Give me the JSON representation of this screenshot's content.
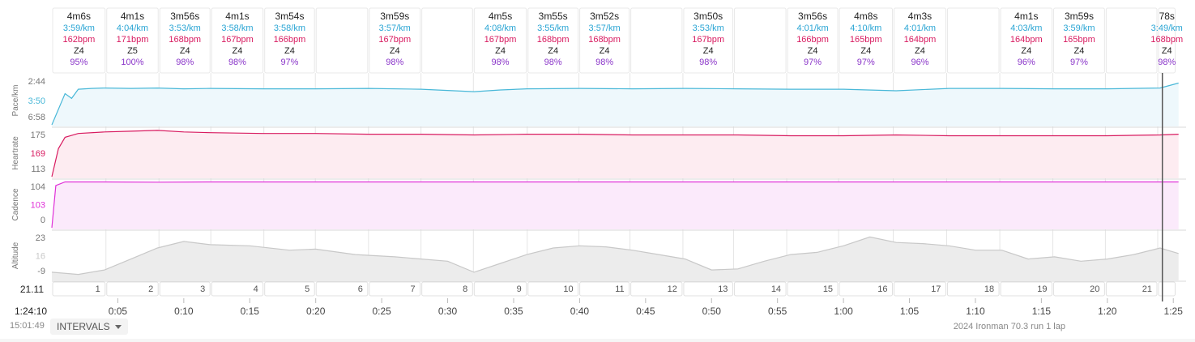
{
  "intervals": [
    {
      "num": "1",
      "time": "4m6s",
      "pace": "3:59/km",
      "hr": "162bpm",
      "zone": "Z4",
      "pct": "95%"
    },
    {
      "num": "2",
      "time": "4m1s",
      "pace": "4:04/km",
      "hr": "171bpm",
      "zone": "Z5",
      "pct": "100%"
    },
    {
      "num": "3",
      "time": "3m56s",
      "pace": "3:53/km",
      "hr": "168bpm",
      "zone": "Z4",
      "pct": "98%"
    },
    {
      "num": "4",
      "time": "4m1s",
      "pace": "3:58/km",
      "hr": "167bpm",
      "zone": "Z4",
      "pct": "98%"
    },
    {
      "num": "5",
      "time": "3m54s",
      "pace": "3:58/km",
      "hr": "166bpm",
      "zone": "Z4",
      "pct": "97%"
    },
    {
      "num": "6",
      "time": "",
      "pace": "",
      "hr": "",
      "zone": "",
      "pct": ""
    },
    {
      "num": "7",
      "time": "3m59s",
      "pace": "3:57/km",
      "hr": "167bpm",
      "zone": "Z4",
      "pct": "98%"
    },
    {
      "num": "8",
      "time": "",
      "pace": "",
      "hr": "",
      "zone": "",
      "pct": ""
    },
    {
      "num": "9",
      "time": "4m5s",
      "pace": "4:08/km",
      "hr": "167bpm",
      "zone": "Z4",
      "pct": "98%"
    },
    {
      "num": "10",
      "time": "3m55s",
      "pace": "3:55/km",
      "hr": "168bpm",
      "zone": "Z4",
      "pct": "98%"
    },
    {
      "num": "11",
      "time": "3m52s",
      "pace": "3:57/km",
      "hr": "168bpm",
      "zone": "Z4",
      "pct": "98%"
    },
    {
      "num": "12",
      "time": "",
      "pace": "",
      "hr": "",
      "zone": "",
      "pct": ""
    },
    {
      "num": "13",
      "time": "3m50s",
      "pace": "3:53/km",
      "hr": "167bpm",
      "zone": "Z4",
      "pct": "98%"
    },
    {
      "num": "14",
      "time": "",
      "pace": "",
      "hr": "",
      "zone": "",
      "pct": ""
    },
    {
      "num": "15",
      "time": "3m56s",
      "pace": "4:01/km",
      "hr": "166bpm",
      "zone": "Z4",
      "pct": "97%"
    },
    {
      "num": "16",
      "time": "4m8s",
      "pace": "4:10/km",
      "hr": "165bpm",
      "zone": "Z4",
      "pct": "97%"
    },
    {
      "num": "17",
      "time": "4m3s",
      "pace": "4:01/km",
      "hr": "164bpm",
      "zone": "Z4",
      "pct": "96%"
    },
    {
      "num": "18",
      "time": "",
      "pace": "",
      "hr": "",
      "zone": "",
      "pct": ""
    },
    {
      "num": "19",
      "time": "4m1s",
      "pace": "4:03/km",
      "hr": "164bpm",
      "zone": "Z4",
      "pct": "96%"
    },
    {
      "num": "20",
      "time": "3m59s",
      "pace": "3:59/km",
      "hr": "165bpm",
      "zone": "Z4",
      "pct": "97%"
    },
    {
      "num": "21",
      "time": "",
      "pace": "",
      "hr": "",
      "zone": "",
      "pct": ""
    },
    {
      "num": "",
      "time": "78s",
      "pace": "3:49/km",
      "hr": "168bpm",
      "zone": "Z4",
      "pct": "98%"
    }
  ],
  "interval_minutes_start": [
    0,
    4.1,
    8.12,
    12.05,
    16.07,
    19.97,
    24.0,
    27.98,
    31.95,
    36.03,
    39.95,
    43.82,
    47.83,
    51.67,
    55.7,
    59.63,
    63.77,
    67.82,
    71.85,
    75.87,
    79.85,
    83.82
  ],
  "interval_end_minutes": 85.2,
  "panels": [
    {
      "name": "Pace/km",
      "ticks": [
        "2:44",
        "3:50",
        "6:58"
      ],
      "highlight": "3:50",
      "color": "#49b8d8",
      "fill": "#eef8fc"
    },
    {
      "name": "Heartrate",
      "ticks": [
        "175",
        "169",
        "113"
      ],
      "highlight": "169",
      "color": "#d81b60",
      "fill": "#fdecf1"
    },
    {
      "name": "Cadence",
      "ticks": [
        "104",
        "103",
        "0"
      ],
      "highlight": "103",
      "color": "#e030d8",
      "fill": "#fbeafb"
    },
    {
      "name": "Altitude",
      "ticks": [
        "23",
        "16",
        "-9"
      ],
      "highlight": "16",
      "color": "#c8c8c8",
      "fill": "#ececec"
    }
  ],
  "distance_label": "21.11",
  "time_axis": [
    "0:05",
    "0:10",
    "0:15",
    "0:20",
    "0:25",
    "0:30",
    "0:35",
    "0:40",
    "0:45",
    "0:50",
    "0:55",
    "1:00",
    "1:05",
    "1:10",
    "1:15",
    "1:20",
    "1:25"
  ],
  "time_axis_minutes": [
    5,
    10,
    15,
    20,
    25,
    30,
    35,
    40,
    45,
    50,
    55,
    60,
    65,
    70,
    75,
    80,
    85
  ],
  "cursor_time": "1:24:10",
  "cursor_clock": "15:01:49",
  "cursor_minute": 84.17,
  "intervals_button": "INTERVALS",
  "activity_title": "2024 Ironman 70.3 run 1 lap",
  "chart_data": {
    "type": "line",
    "x_unit": "minutes",
    "xlim": [
      0,
      85.6
    ],
    "series": [
      {
        "name": "Pace/km",
        "y_ticks": [
          "2:44",
          "3:50",
          "6:58"
        ],
        "x": [
          0,
          1,
          1.5,
          2,
          3,
          4,
          6,
          8,
          10,
          12,
          16,
          20,
          24,
          28,
          32,
          34,
          36,
          40,
          44,
          48,
          52,
          56,
          60,
          64,
          68,
          72,
          76,
          80,
          84,
          85.4
        ],
        "y_sec": [
          418,
          255,
          280,
          232,
          228,
          226,
          228,
          226,
          230,
          228,
          230,
          230,
          228,
          232,
          245,
          236,
          230,
          228,
          230,
          228,
          230,
          232,
          232,
          240,
          228,
          228,
          230,
          230,
          226,
          200
        ]
      },
      {
        "name": "Heartrate",
        "y_ticks": [
          "175",
          "169",
          "113"
        ],
        "x": [
          0,
          0.5,
          1,
          2,
          4,
          6,
          8,
          10,
          12,
          16,
          20,
          24,
          28,
          32,
          36,
          40,
          44,
          48,
          52,
          56,
          60,
          64,
          68,
          72,
          76,
          80,
          84,
          85.4
        ],
        "y": [
          113,
          150,
          165,
          170,
          172,
          173,
          174,
          172,
          171,
          170,
          170,
          169,
          169,
          168,
          169,
          169,
          168,
          168,
          168,
          167,
          167,
          168,
          167,
          167,
          167,
          167,
          168,
          169
        ]
      },
      {
        "name": "Cadence",
        "y_ticks": [
          "104",
          "103",
          "0"
        ],
        "x": [
          0,
          0.3,
          1,
          4,
          8,
          12,
          16,
          20,
          24,
          28,
          32,
          36,
          40,
          44,
          48,
          52,
          56,
          60,
          64,
          68,
          72,
          76,
          80,
          84,
          85.4
        ],
        "y": [
          0,
          95,
          103,
          103,
          102.5,
          103,
          103,
          103,
          103,
          103,
          103,
          103,
          103,
          103,
          103,
          103,
          103,
          103,
          103,
          103,
          103,
          103,
          103,
          103,
          103
        ]
      },
      {
        "name": "Altitude",
        "y_ticks": [
          "23",
          "16",
          "-9"
        ],
        "x": [
          0,
          2,
          4,
          6,
          8,
          10,
          12,
          15,
          18,
          20,
          23,
          26,
          28,
          30,
          32,
          34,
          36,
          38,
          40,
          42,
          44,
          46,
          48,
          50,
          52,
          54,
          56,
          58,
          60,
          62,
          64,
          66,
          68,
          70,
          72,
          74,
          76,
          78,
          80,
          82,
          84,
          85.4
        ],
        "y": [
          -6,
          -8,
          -4,
          6,
          16,
          22,
          19,
          18,
          14,
          15,
          10,
          8,
          6,
          4,
          -6,
          2,
          10,
          16,
          18,
          17,
          14,
          10,
          6,
          -4,
          -3,
          4,
          10,
          12,
          18,
          26,
          21,
          20,
          18,
          14,
          14,
          6,
          8,
          4,
          6,
          10,
          16,
          11
        ]
      }
    ]
  }
}
